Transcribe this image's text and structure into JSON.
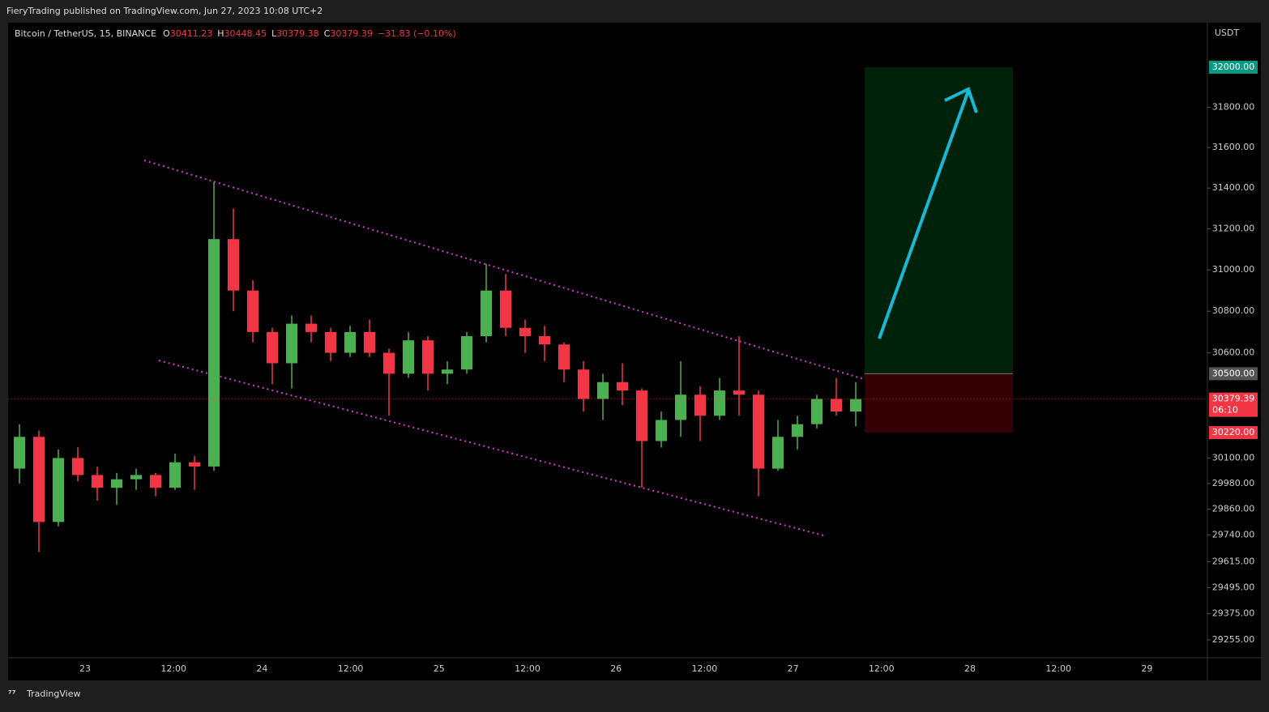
{
  "header": {
    "publisher": "FieryTrading published on TradingView.com, Jun 27, 2023 10:08 UTC+2"
  },
  "footer": {
    "brand": "TradingView"
  },
  "chart_data": {
    "type": "candlestick",
    "symbol": "Bitcoin / TetherUS, 15, BINANCE",
    "ohlc_legend": [
      {
        "label": "O",
        "value": "30411.23"
      },
      {
        "label": "H",
        "value": "30448.45"
      },
      {
        "label": "L",
        "value": "30379.38"
      },
      {
        "label": "C",
        "value": "30379.39"
      }
    ],
    "change": "−31.83 (−0.10%)",
    "currency": "USDT",
    "log_scale": true,
    "up_color": "#4caf50",
    "down_color": "#f23645",
    "ylim": [
      29173,
      32224
    ],
    "yticks": [
      {
        "value": 31800,
        "label": "31800.00"
      },
      {
        "value": 31600,
        "label": "31600.00"
      },
      {
        "value": 31400,
        "label": "31400.00"
      },
      {
        "value": 31200,
        "label": "31200.00"
      },
      {
        "value": 31000,
        "label": "31000.00"
      },
      {
        "value": 30800,
        "label": "30800.00"
      },
      {
        "value": 30600,
        "label": "30600.00"
      },
      {
        "value": 30100,
        "label": "30100.00"
      },
      {
        "value": 29980,
        "label": "29980.00"
      },
      {
        "value": 29860,
        "label": "29860.00"
      },
      {
        "value": 29740,
        "label": "29740.00"
      },
      {
        "value": 29615,
        "label": "29615.00"
      },
      {
        "value": 29495,
        "label": "29495.00"
      },
      {
        "value": 29375,
        "label": "29375.00"
      },
      {
        "value": 29255,
        "label": "29255.00"
      }
    ],
    "xtick_labels": [
      "23",
      "12:00",
      "24",
      "12:00",
      "25",
      "12:00",
      "26",
      "12:00",
      "27",
      "12:00",
      "28",
      "12:00",
      "29"
    ],
    "candles": {
      "open": [
        30050,
        30200,
        29800,
        30100,
        30020,
        29960,
        30000,
        30020,
        29960,
        30080,
        30060,
        31150,
        30900,
        30700,
        30550,
        30740,
        30700,
        30600,
        30700,
        30600,
        30500,
        30660,
        30500,
        30520,
        30680,
        30900,
        30720,
        30680,
        30640,
        30520,
        30380,
        30460,
        30420,
        30180,
        30280,
        30400,
        30300,
        30420,
        30400,
        30050,
        30200,
        30260,
        30380,
        30320
      ],
      "high": [
        30260,
        30230,
        30140,
        30150,
        30060,
        30030,
        30050,
        30030,
        30120,
        30110,
        31430,
        31300,
        30950,
        30720,
        30780,
        30780,
        30720,
        30730,
        30760,
        30620,
        30700,
        30680,
        30560,
        30700,
        31030,
        30980,
        30760,
        30730,
        30650,
        30560,
        30500,
        30550,
        30430,
        30320,
        30560,
        30440,
        30480,
        30680,
        30420,
        30280,
        30300,
        30400,
        30480,
        30460
      ],
      "low": [
        29980,
        29660,
        29780,
        29990,
        29900,
        29880,
        29950,
        29920,
        29950,
        29950,
        30040,
        30800,
        30650,
        30450,
        30430,
        30650,
        30560,
        30580,
        30580,
        30300,
        30480,
        30420,
        30450,
        30500,
        30650,
        30680,
        30600,
        30560,
        30460,
        30320,
        30280,
        30350,
        29960,
        30150,
        30200,
        30180,
        30280,
        30300,
        29920,
        30040,
        30140,
        30240,
        30300,
        30250
      ],
      "close": [
        30200,
        29800,
        30100,
        30020,
        29960,
        30000,
        30020,
        29960,
        30080,
        30060,
        31150,
        30900,
        30700,
        30550,
        30740,
        30700,
        30600,
        30700,
        30600,
        30500,
        30660,
        30500,
        30520,
        30680,
        30900,
        30720,
        30680,
        30640,
        30520,
        30380,
        30460,
        30420,
        30180,
        30280,
        30400,
        30300,
        30420,
        30400,
        30050,
        30200,
        30260,
        30380,
        30320,
        30379.39
      ]
    },
    "position": {
      "target": {
        "value": 32000,
        "label": "32000.00"
      },
      "entry": {
        "value": 30500,
        "label": "30500.00"
      },
      "stop": {
        "value": 30220,
        "label": "30220.00"
      }
    },
    "last_price": {
      "value": 30379.39,
      "label": "30379.39",
      "countdown": "06:10"
    }
  }
}
